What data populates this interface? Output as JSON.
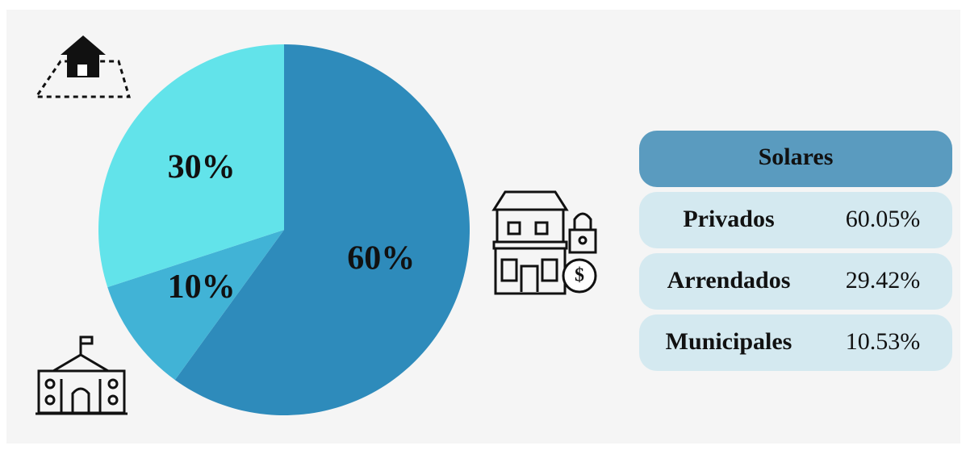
{
  "chart_data": {
    "type": "pie",
    "values": [
      60,
      10,
      30
    ],
    "value_labels": [
      "60%",
      "10%",
      "30%"
    ],
    "colors": [
      "#2e8bbb",
      "#41b3d6",
      "#62e3ea"
    ]
  },
  "table": {
    "title": "Solares",
    "rows": [
      [
        "Privados",
        "60.05%"
      ],
      [
        "Arrendados",
        "29.42%"
      ],
      [
        "Municipales",
        "10.53%"
      ]
    ]
  }
}
